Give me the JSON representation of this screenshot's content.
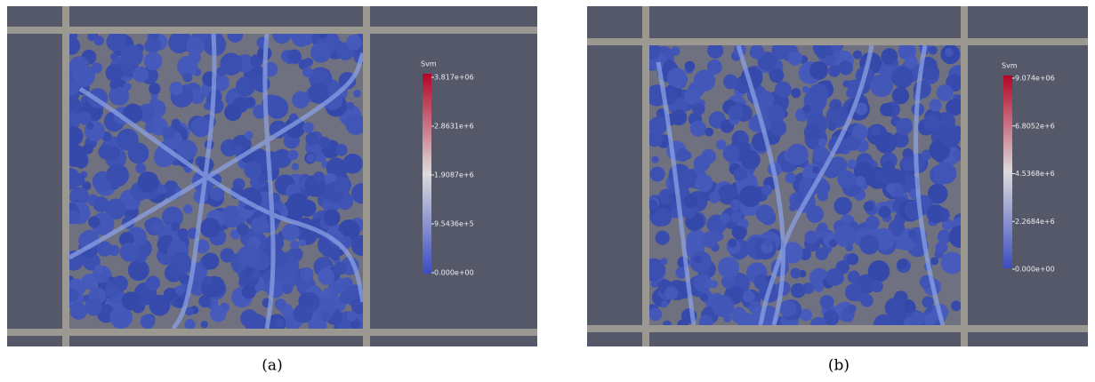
{
  "panels": [
    {
      "colorbar": {
        "title": "Svm",
        "ticks": [
          "3.817e+06",
          "2.8631e+6",
          "1.9087e+6",
          "9.5436e+5",
          "0.000e+00"
        ]
      },
      "caption": "(a)"
    },
    {
      "colorbar": {
        "title": "Svm",
        "ticks": [
          "9.074e+06",
          "6.8052e+6",
          "4.5368e+6",
          "2.2684e+6",
          "0.000e+00"
        ]
      },
      "caption": "(b)"
    }
  ]
}
